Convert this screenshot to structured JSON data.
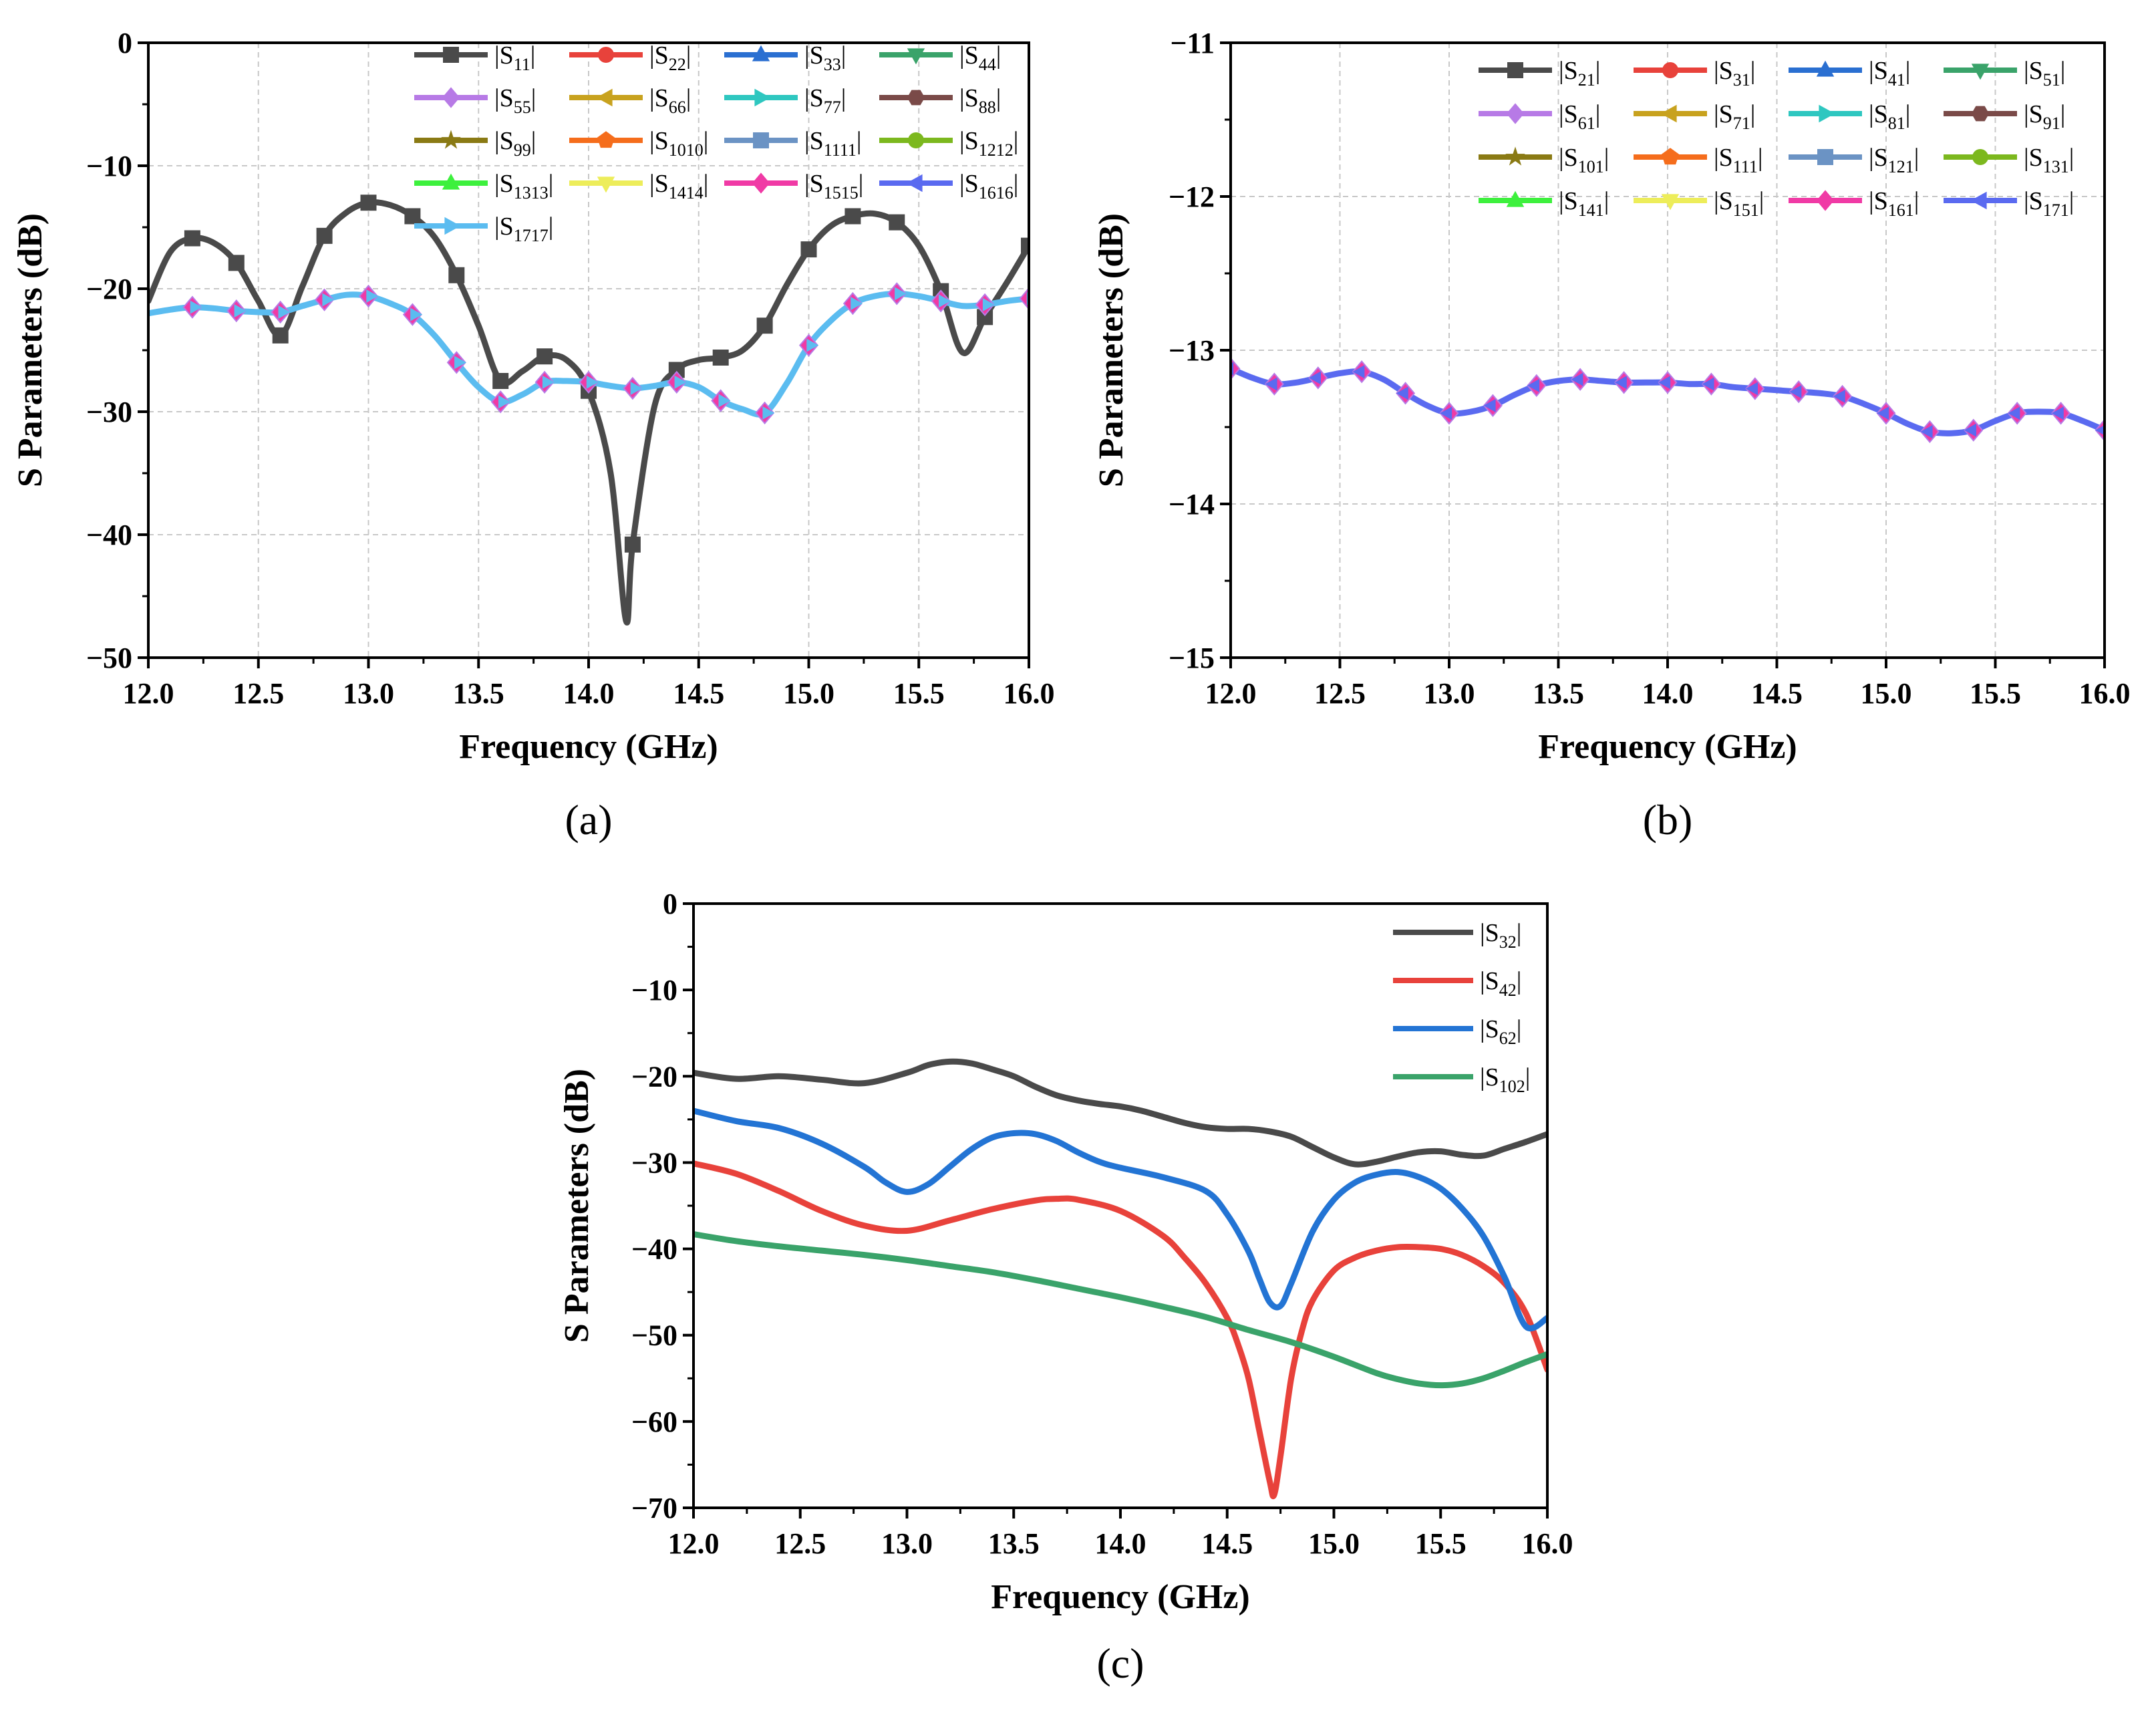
{
  "figure": {
    "panels": [
      "a",
      "b",
      "c"
    ]
  },
  "chart_data": [
    {
      "id": "a",
      "type": "line",
      "panel_label": "(a)",
      "xlabel": "Frequency (GHz)",
      "ylabel": "S Parameters (dB)",
      "xlim": [
        12.0,
        16.0
      ],
      "ylim": [
        -50,
        0
      ],
      "xticks": [
        "12.0",
        "12.5",
        "13.0",
        "13.5",
        "14.0",
        "14.5",
        "15.0",
        "15.5",
        "16.0"
      ],
      "yticks": [
        "0",
        "−10",
        "−20",
        "−30",
        "−40",
        "−50"
      ],
      "grid": true,
      "legend_position": "top-right",
      "series": [
        {
          "name": "|S11|",
          "label_main": "S",
          "label_sub": "11",
          "color": "#4a4a4a",
          "marker": "square",
          "x": [
            12.0,
            12.1,
            12.2,
            12.3,
            12.4,
            12.5,
            12.6,
            12.7,
            12.8,
            12.9,
            13.0,
            13.1,
            13.2,
            13.3,
            13.4,
            13.5,
            13.6,
            13.7,
            13.8,
            13.9,
            14.0,
            14.1,
            14.17,
            14.2,
            14.3,
            14.4,
            14.5,
            14.6,
            14.7,
            14.8,
            14.9,
            15.0,
            15.1,
            15.2,
            15.3,
            15.4,
            15.5,
            15.6,
            15.7,
            15.8,
            15.9,
            16.0
          ],
          "values": [
            -21,
            -17,
            -15.9,
            -16.3,
            -17.9,
            -21,
            -23.8,
            -19.8,
            -15.7,
            -13.8,
            -13.0,
            -13.2,
            -14.1,
            -15.8,
            -18.9,
            -23,
            -27.5,
            -26.7,
            -25.5,
            -25.8,
            -28.3,
            -35,
            -47,
            -40.8,
            -29.5,
            -26.6,
            -25.8,
            -25.6,
            -25,
            -23,
            -19.7,
            -16.8,
            -14.9,
            -14.1,
            -13.9,
            -14.6,
            -16.5,
            -20.2,
            -25.2,
            -22.3,
            -19.5,
            -16.5
          ],
          "marker_x": [
            12.2,
            12.4,
            12.6,
            12.8,
            13.0,
            13.2,
            13.4,
            13.6,
            13.8,
            14.0,
            14.2,
            14.4,
            14.6,
            14.8,
            15.0,
            15.2,
            15.4,
            15.6,
            15.8,
            16.0
          ]
        },
        {
          "name": "|S22|",
          "label_main": "S",
          "label_sub": "22",
          "color": "#e8423b",
          "marker": "circle"
        },
        {
          "name": "|S33|",
          "label_main": "S",
          "label_sub": "33",
          "color": "#2a6fd1",
          "marker": "triangle-up"
        },
        {
          "name": "|S44|",
          "label_main": "S",
          "label_sub": "44",
          "color": "#3aa36a",
          "marker": "triangle-down"
        },
        {
          "name": "|S55|",
          "label_main": "S",
          "label_sub": "55",
          "color": "#b77ae6",
          "marker": "diamond"
        },
        {
          "name": "|S66|",
          "label_main": "S",
          "label_sub": "66",
          "color": "#c8a21e",
          "marker": "triangle-left"
        },
        {
          "name": "|S77|",
          "label_main": "S",
          "label_sub": "77",
          "color": "#2ec7c0",
          "marker": "triangle-right"
        },
        {
          "name": "|S88|",
          "label_main": "S",
          "label_sub": "88",
          "color": "#7a4a48",
          "marker": "hexagon"
        },
        {
          "name": "|S99|",
          "label_main": "S",
          "label_sub": "99",
          "color": "#8a7a14",
          "marker": "star"
        },
        {
          "name": "|S1010|",
          "label_main": "S",
          "label_sub": "1010",
          "color": "#f56d1c",
          "marker": "pentagon"
        },
        {
          "name": "|S1111|",
          "label_main": "S",
          "label_sub": "1111",
          "color": "#6b93c4",
          "marker": "square"
        },
        {
          "name": "|S1212|",
          "label_main": "S",
          "label_sub": "1212",
          "color": "#7cb81e",
          "marker": "circle"
        },
        {
          "name": "|S1313|",
          "label_main": "S",
          "label_sub": "1313",
          "color": "#3df03d",
          "marker": "triangle-up"
        },
        {
          "name": "|S1414|",
          "label_main": "S",
          "label_sub": "1414",
          "color": "#eded5a",
          "marker": "triangle-down"
        },
        {
          "name": "|S1515|",
          "label_main": "S",
          "label_sub": "1515",
          "color": "#f03aa5",
          "marker": "diamond"
        },
        {
          "name": "|S1616|",
          "label_main": "S",
          "label_sub": "1616",
          "color": "#5a6af0",
          "marker": "triangle-left"
        },
        {
          "name": "|S1717|",
          "label_main": "S",
          "label_sub": "1717",
          "color": "#5bbcf0",
          "marker": "triangle-right",
          "x": [
            12.0,
            12.1,
            12.2,
            12.3,
            12.4,
            12.5,
            12.6,
            12.7,
            12.8,
            12.9,
            13.0,
            13.1,
            13.2,
            13.3,
            13.4,
            13.5,
            13.6,
            13.7,
            13.8,
            13.9,
            14.0,
            14.1,
            14.2,
            14.3,
            14.4,
            14.5,
            14.6,
            14.7,
            14.8,
            14.9,
            15.0,
            15.1,
            15.2,
            15.3,
            15.4,
            15.5,
            15.6,
            15.7,
            15.8,
            15.9,
            16.0
          ],
          "values": [
            -22,
            -21.7,
            -21.5,
            -21.6,
            -21.8,
            -21.9,
            -21.9,
            -21.4,
            -20.9,
            -20.5,
            -20.6,
            -21.2,
            -22.1,
            -23.8,
            -26,
            -28,
            -29.2,
            -28.6,
            -27.6,
            -27.5,
            -27.6,
            -27.9,
            -28.1,
            -27.9,
            -27.6,
            -28,
            -29.1,
            -29.8,
            -30.1,
            -27.7,
            -24.6,
            -22.6,
            -21.2,
            -20.6,
            -20.4,
            -20.6,
            -21,
            -21.4,
            -21.3,
            -21,
            -20.8
          ],
          "marker_x": [
            12.2,
            12.4,
            12.6,
            12.8,
            13.0,
            13.2,
            13.4,
            13.6,
            13.8,
            14.0,
            14.2,
            14.4,
            14.6,
            14.8,
            15.0,
            15.2,
            15.4,
            15.6,
            15.8,
            16.0
          ]
        }
      ]
    },
    {
      "id": "b",
      "type": "line",
      "panel_label": "(b)",
      "xlabel": "Frequency (GHz)",
      "ylabel": "S Parameters (dB)",
      "xlim": [
        12.0,
        16.0
      ],
      "ylim": [
        -15,
        -11
      ],
      "xticks": [
        "12.0",
        "12.5",
        "13.0",
        "13.5",
        "14.0",
        "14.5",
        "15.0",
        "15.5",
        "16.0"
      ],
      "yticks": [
        "−11",
        "−12",
        "−13",
        "−14",
        "−15"
      ],
      "grid": true,
      "legend_position": "top-right",
      "series": [
        {
          "name": "|S21|",
          "label_main": "S",
          "label_sub": "21",
          "color": "#4a4a4a",
          "marker": "square"
        },
        {
          "name": "|S31|",
          "label_main": "S",
          "label_sub": "31",
          "color": "#e8423b",
          "marker": "circle"
        },
        {
          "name": "|S41|",
          "label_main": "S",
          "label_sub": "41",
          "color": "#2a6fd1",
          "marker": "triangle-up"
        },
        {
          "name": "|S51|",
          "label_main": "S",
          "label_sub": "51",
          "color": "#3aa36a",
          "marker": "triangle-down"
        },
        {
          "name": "|S61|",
          "label_main": "S",
          "label_sub": "61",
          "color": "#b77ae6",
          "marker": "diamond"
        },
        {
          "name": "|S71|",
          "label_main": "S",
          "label_sub": "71",
          "color": "#c8a21e",
          "marker": "triangle-left"
        },
        {
          "name": "|S81|",
          "label_main": "S",
          "label_sub": "81",
          "color": "#2ec7c0",
          "marker": "triangle-right"
        },
        {
          "name": "|S91|",
          "label_main": "S",
          "label_sub": "91",
          "color": "#7a4a48",
          "marker": "hexagon"
        },
        {
          "name": "|S101|",
          "label_main": "S",
          "label_sub": "101",
          "color": "#8a7a14",
          "marker": "star"
        },
        {
          "name": "|S111|",
          "label_main": "S",
          "label_sub": "111",
          "color": "#f56d1c",
          "marker": "pentagon"
        },
        {
          "name": "|S121|",
          "label_main": "S",
          "label_sub": "121",
          "color": "#6b93c4",
          "marker": "square"
        },
        {
          "name": "|S131|",
          "label_main": "S",
          "label_sub": "131",
          "color": "#7cb81e",
          "marker": "circle"
        },
        {
          "name": "|S141|",
          "label_main": "S",
          "label_sub": "141",
          "color": "#3df03d",
          "marker": "triangle-up"
        },
        {
          "name": "|S151|",
          "label_main": "S",
          "label_sub": "151",
          "color": "#eded5a",
          "marker": "triangle-down"
        },
        {
          "name": "|S161|",
          "label_main": "S",
          "label_sub": "161",
          "color": "#f03aa5",
          "marker": "diamond"
        },
        {
          "name": "|S171|",
          "label_main": "S",
          "label_sub": "171",
          "color": "#5a6af0",
          "marker": "triangle-left",
          "x": [
            12.0,
            12.1,
            12.2,
            12.3,
            12.4,
            12.5,
            12.6,
            12.7,
            12.8,
            12.9,
            13.0,
            13.1,
            13.2,
            13.3,
            13.4,
            13.5,
            13.6,
            13.7,
            13.8,
            13.9,
            14.0,
            14.1,
            14.2,
            14.3,
            14.4,
            14.5,
            14.6,
            14.7,
            14.8,
            14.9,
            15.0,
            15.1,
            15.2,
            15.3,
            15.4,
            15.5,
            15.6,
            15.7,
            15.8,
            15.9,
            16.0
          ],
          "values": [
            -13.12,
            -13.18,
            -13.22,
            -13.21,
            -13.18,
            -13.15,
            -13.14,
            -13.19,
            -13.28,
            -13.36,
            -13.41,
            -13.4,
            -13.36,
            -13.29,
            -13.23,
            -13.2,
            -13.19,
            -13.2,
            -13.21,
            -13.21,
            -13.21,
            -13.22,
            -13.22,
            -13.24,
            -13.25,
            -13.26,
            -13.27,
            -13.28,
            -13.3,
            -13.35,
            -13.41,
            -13.48,
            -13.53,
            -13.54,
            -13.52,
            -13.46,
            -13.41,
            -13.4,
            -13.41,
            -13.46,
            -13.52
          ],
          "marker_x": [
            12.0,
            12.2,
            12.4,
            12.6,
            12.8,
            13.0,
            13.2,
            13.4,
            13.6,
            13.8,
            14.0,
            14.2,
            14.4,
            14.6,
            14.8,
            15.0,
            15.2,
            15.4,
            15.6,
            15.8,
            16.0
          ]
        }
      ]
    },
    {
      "id": "c",
      "type": "line",
      "panel_label": "(c)",
      "xlabel": "Frequency (GHz)",
      "ylabel": "S Parameters (dB)",
      "xlim": [
        12.0,
        16.0
      ],
      "ylim": [
        -70,
        0
      ],
      "xticks": [
        "12.0",
        "12.5",
        "13.0",
        "13.5",
        "14.0",
        "14.5",
        "15.0",
        "15.5",
        "16.0"
      ],
      "yticks": [
        "0",
        "−10",
        "−20",
        "−30",
        "−40",
        "−50",
        "−60",
        "−70"
      ],
      "grid": false,
      "legend_position": "top-right",
      "series": [
        {
          "name": "|S32|",
          "label_main": "S",
          "label_sub": "32",
          "color": "#4a4a4a",
          "x": [
            12.0,
            12.2,
            12.4,
            12.6,
            12.8,
            13.0,
            13.1,
            13.2,
            13.3,
            13.4,
            13.5,
            13.6,
            13.7,
            13.8,
            13.9,
            14.0,
            14.1,
            14.2,
            14.3,
            14.4,
            14.5,
            14.6,
            14.7,
            14.8,
            14.9,
            15.0,
            15.1,
            15.2,
            15.3,
            15.4,
            15.5,
            15.6,
            15.7,
            15.8,
            15.9,
            16.0
          ],
          "values": [
            -19.6,
            -20.3,
            -20,
            -20.4,
            -20.8,
            -19.6,
            -18.7,
            -18.3,
            -18.5,
            -19.2,
            -20,
            -21.2,
            -22.2,
            -22.8,
            -23.2,
            -23.5,
            -24,
            -24.7,
            -25.4,
            -25.9,
            -26.1,
            -26.1,
            -26.4,
            -27,
            -28.2,
            -29.4,
            -30.2,
            -29.9,
            -29.3,
            -28.8,
            -28.7,
            -29.1,
            -29.2,
            -28.4,
            -27.6,
            -26.7
          ]
        },
        {
          "name": "|S42|",
          "label_main": "S",
          "label_sub": "42",
          "color": "#e8423b",
          "x": [
            12.0,
            12.2,
            12.4,
            12.6,
            12.8,
            13.0,
            13.2,
            13.4,
            13.6,
            13.7,
            13.8,
            14.0,
            14.2,
            14.3,
            14.4,
            14.5,
            14.55,
            14.6,
            14.65,
            14.7,
            14.72,
            14.75,
            14.8,
            14.85,
            14.9,
            15.0,
            15.1,
            15.2,
            15.3,
            15.4,
            15.5,
            15.6,
            15.7,
            15.8,
            15.9,
            16.0
          ],
          "values": [
            -30.1,
            -31.3,
            -33.3,
            -35.6,
            -37.3,
            -37.9,
            -36.7,
            -35.4,
            -34.4,
            -34.2,
            -34.3,
            -35.6,
            -38.5,
            -41,
            -44,
            -48,
            -51,
            -55,
            -61,
            -67,
            -68.5,
            -64,
            -55,
            -49.5,
            -46,
            -42.5,
            -41,
            -40.2,
            -39.8,
            -39.8,
            -40,
            -40.7,
            -42,
            -44,
            -47.5,
            -54
          ]
        },
        {
          "name": "|S62|",
          "label_main": "S",
          "label_sub": "62",
          "color": "#2374d4",
          "x": [
            12.0,
            12.2,
            12.4,
            12.6,
            12.8,
            12.9,
            13.0,
            13.1,
            13.2,
            13.3,
            13.4,
            13.5,
            13.6,
            13.7,
            13.8,
            13.9,
            14.0,
            14.2,
            14.4,
            14.5,
            14.6,
            14.65,
            14.7,
            14.75,
            14.8,
            14.9,
            15.0,
            15.1,
            15.2,
            15.3,
            15.4,
            15.5,
            15.6,
            15.7,
            15.8,
            15.9,
            16.0
          ],
          "values": [
            -24,
            -25.2,
            -26,
            -27.8,
            -30.5,
            -32.3,
            -33.4,
            -32.5,
            -30.5,
            -28.5,
            -27.1,
            -26.6,
            -26.7,
            -27.5,
            -28.8,
            -29.9,
            -30.6,
            -31.7,
            -33.3,
            -36,
            -40.3,
            -43.4,
            -46.2,
            -46.6,
            -44,
            -38,
            -34.3,
            -32.3,
            -31.4,
            -31.1,
            -31.7,
            -33,
            -35.3,
            -38.5,
            -43.3,
            -49,
            -48
          ]
        },
        {
          "name": "|S102|",
          "label_main": "S",
          "label_sub": "102",
          "color": "#3aa36a",
          "x": [
            12.0,
            12.2,
            12.4,
            12.6,
            12.8,
            13.0,
            13.2,
            13.4,
            13.6,
            13.8,
            14.0,
            14.2,
            14.4,
            14.6,
            14.8,
            15.0,
            15.2,
            15.3,
            15.4,
            15.5,
            15.6,
            15.7,
            15.8,
            15.9,
            16.0
          ],
          "values": [
            -38.3,
            -39.1,
            -39.7,
            -40.2,
            -40.7,
            -41.3,
            -42,
            -42.7,
            -43.6,
            -44.6,
            -45.6,
            -46.7,
            -47.9,
            -49.4,
            -50.8,
            -52.5,
            -54.4,
            -55.1,
            -55.6,
            -55.8,
            -55.6,
            -55,
            -54.1,
            -53.1,
            -52.2
          ]
        }
      ]
    }
  ]
}
